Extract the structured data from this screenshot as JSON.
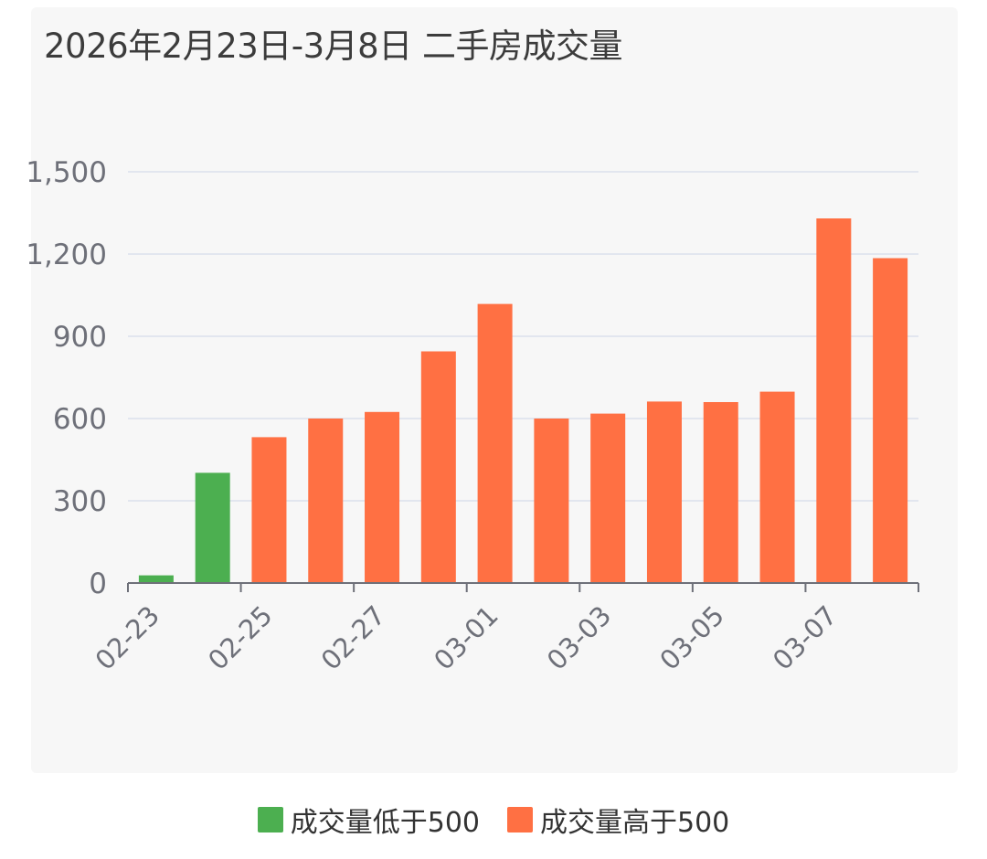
{
  "title": "2026年2月23日-3月8日 二手房成交量",
  "colors": {
    "low": "#4caf50",
    "high": "#ff7043",
    "grid": "#e2e6ef",
    "axis": "#6e7079",
    "tick_text": "#6e7079"
  },
  "legend": [
    {
      "label": "成交量低于500",
      "color": "#4caf50"
    },
    {
      "label": "成交量高于500",
      "color": "#ff7043"
    }
  ],
  "chart_data": {
    "type": "bar",
    "title": "2026年2月23日-3月8日 二手房成交量",
    "categories": [
      "02-23",
      "02-24",
      "02-25",
      "02-26",
      "02-27",
      "02-28",
      "03-01",
      "03-02",
      "03-03",
      "03-04",
      "03-05",
      "03-06",
      "03-07",
      "03-08"
    ],
    "x_tick_labels": [
      "02-23",
      "02-25",
      "02-27",
      "03-01",
      "03-03",
      "03-05",
      "03-07"
    ],
    "values": [
      28,
      402,
      532,
      600,
      624,
      845,
      1018,
      600,
      618,
      662,
      660,
      698,
      1330,
      1185
    ],
    "series": [
      {
        "name": "成交量低于500",
        "color": "#4caf50",
        "rule": "value < 500"
      },
      {
        "name": "成交量高于500",
        "color": "#ff7043",
        "rule": "value >= 500"
      }
    ],
    "ylim": [
      0,
      1500
    ],
    "y_ticks": [
      0,
      300,
      600,
      900,
      1200,
      1500
    ],
    "y_tick_labels": [
      "0",
      "300",
      "600",
      "900",
      "1,200",
      "1,500"
    ],
    "grid": true,
    "legend_position": "bottom-center",
    "xlabel": "",
    "ylabel": ""
  }
}
